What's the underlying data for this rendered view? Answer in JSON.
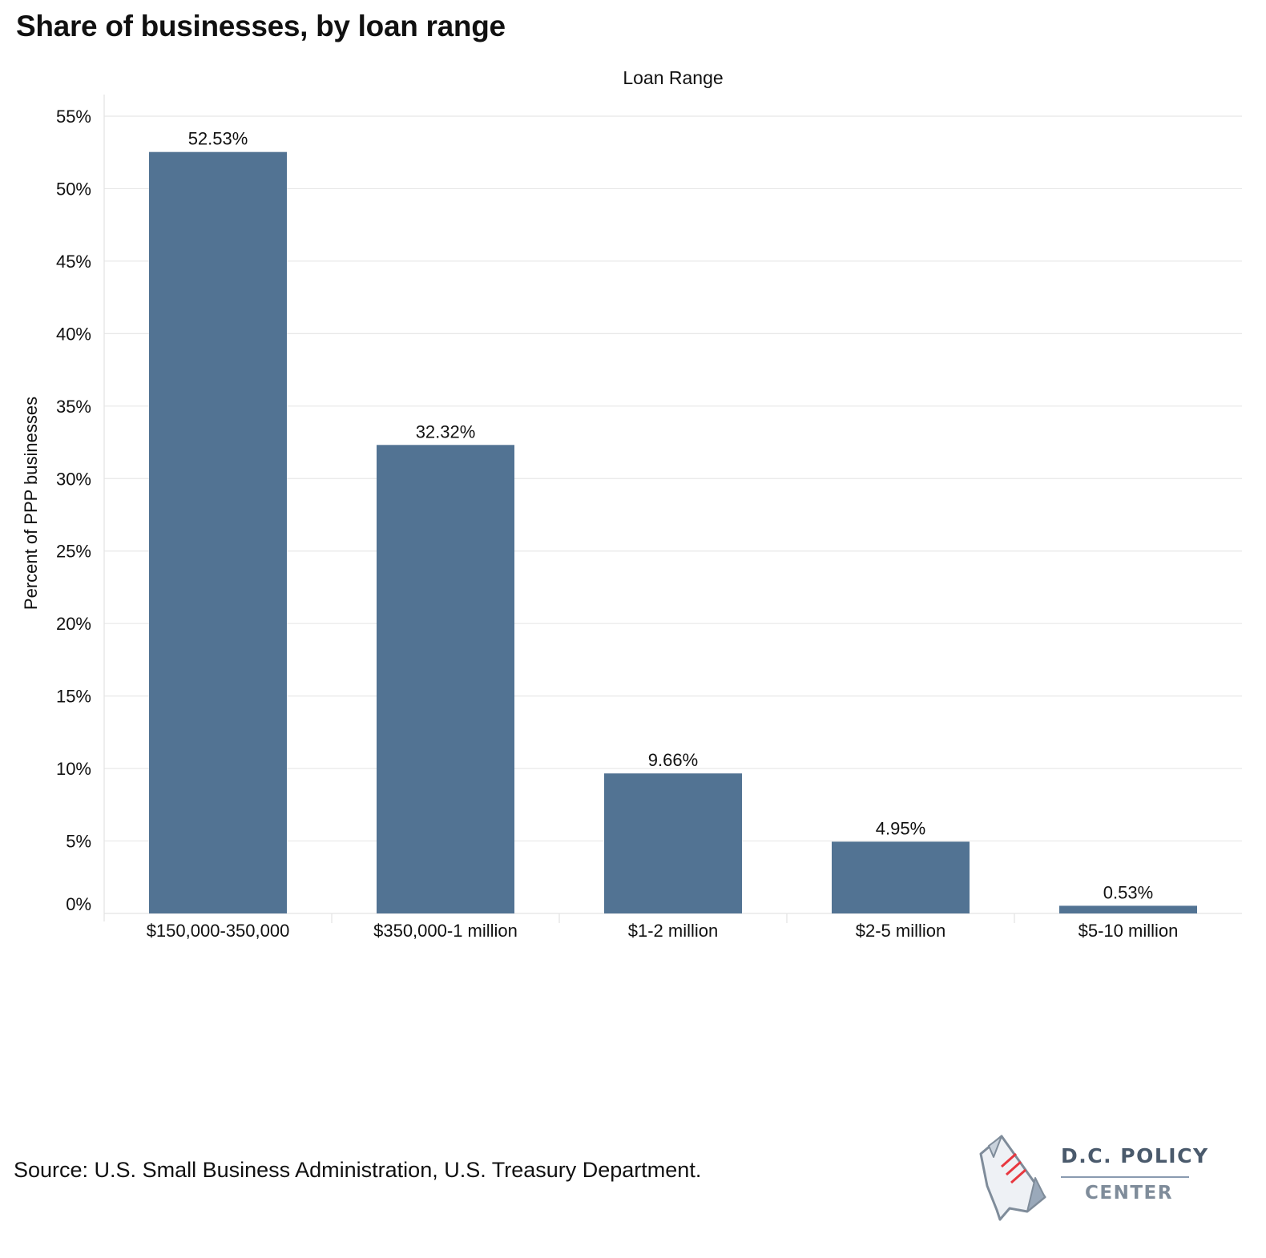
{
  "title": "Share of businesses, by loan range",
  "chart_data": {
    "type": "bar",
    "column_header": "Loan Range",
    "ylabel": "Percent of PPP businesses",
    "categories": [
      "$150,000-350,000",
      "$350,000-1 million",
      "$1-2 million",
      "$2-5 million",
      "$5-10 million"
    ],
    "values": [
      52.53,
      32.32,
      9.66,
      4.95,
      0.53
    ],
    "value_labels": [
      "52.53%",
      "32.32%",
      "9.66%",
      "4.95%",
      "0.53%"
    ],
    "ylim": [
      0,
      55
    ],
    "yticks": [
      0,
      5,
      10,
      15,
      20,
      25,
      30,
      35,
      40,
      45,
      50,
      55
    ],
    "ytick_labels": [
      "0%",
      "5%",
      "10%",
      "15%",
      "20%",
      "25%",
      "30%",
      "35%",
      "40%",
      "45%",
      "50%",
      "55%"
    ],
    "grid": true,
    "legend": "none",
    "bar_color": "#527393"
  },
  "source": "Source: U.S. Small Business Administration, U.S. Treasury Department.",
  "logo": {
    "line1": "D.C. POLICY",
    "line2": "CENTER",
    "icon": "dc-map-document-icon"
  }
}
